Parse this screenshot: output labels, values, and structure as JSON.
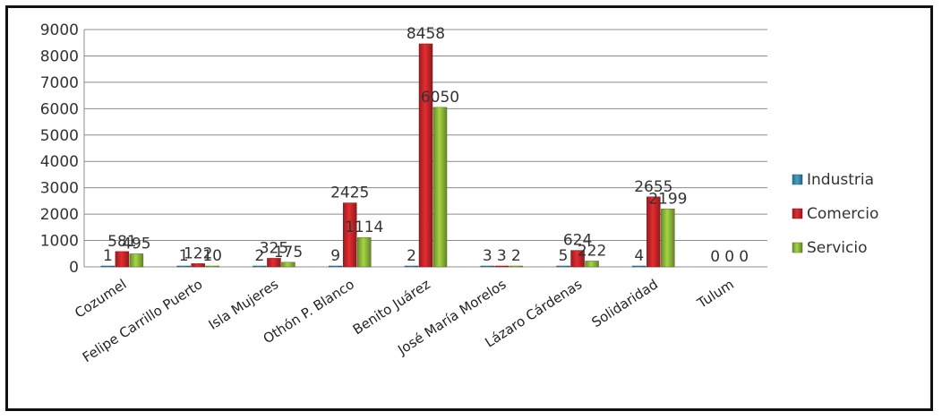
{
  "chart_data": {
    "type": "bar",
    "categories": [
      "Cozumel",
      "Felipe Carrillo Puerto",
      "Isla  Mujeres",
      "Othón P. Blanco",
      "Benito Juárez",
      "José María Morelos",
      "Lázaro Cárdenas",
      "Solidaridad",
      "Tulum"
    ],
    "series": [
      {
        "name": "Industria",
        "color": "#3a8db0",
        "values": [
          1,
          1,
          2,
          9,
          2,
          3,
          5,
          4,
          0
        ]
      },
      {
        "name": "Comercio",
        "color": "#c8262a",
        "values": [
          581,
          122,
          325,
          2425,
          8458,
          3,
          624,
          2655,
          0
        ]
      },
      {
        "name": "Servicio",
        "color": "#8fba3a",
        "values": [
          495,
          10,
          175,
          1114,
          6050,
          2,
          222,
          2199,
          0
        ]
      }
    ],
    "data_labels": [
      [
        "1",
        "1",
        "2",
        "9",
        "2",
        "3",
        "5",
        "4",
        "0"
      ],
      [
        "581",
        "122",
        "325",
        "2425",
        "8458",
        "3",
        "624",
        "2655",
        "0"
      ],
      [
        "495",
        "10",
        "175",
        "1114",
        "6050",
        "2",
        "222",
        "2199",
        "0"
      ]
    ],
    "y_ticks": [
      "0",
      "1000",
      "2000",
      "3000",
      "4000",
      "5000",
      "6000",
      "7000",
      "8000",
      "9000"
    ],
    "ylim": [
      0,
      9000
    ],
    "grid": true,
    "legend_position": "right",
    "title": "",
    "xlabel": "",
    "ylabel": ""
  }
}
